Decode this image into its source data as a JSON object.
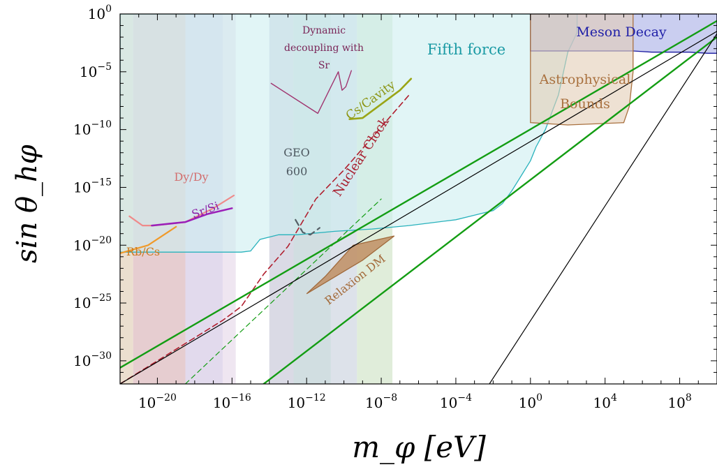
{
  "chart_data": {
    "type": "area",
    "xlabel": "m_φ [eV]",
    "ylabel": "sin θ_hφ",
    "x_scale": "log10",
    "y_scale": "log10",
    "xlim_log10": [
      -22,
      10
    ],
    "ylim_log10": [
      -32,
      0
    ],
    "x_ticks": [
      {
        "exp": -20,
        "label": "10",
        "sup": "−20"
      },
      {
        "exp": -16,
        "label": "10",
        "sup": "−16"
      },
      {
        "exp": -12,
        "label": "10",
        "sup": "−12"
      },
      {
        "exp": -8,
        "label": "10",
        "sup": "−8"
      },
      {
        "exp": -4,
        "label": "10",
        "sup": "−4"
      },
      {
        "exp": 0,
        "label": "10",
        "sup": "0"
      },
      {
        "exp": 4,
        "label": "10",
        "sup": "4"
      },
      {
        "exp": 8,
        "label": "10",
        "sup": "8"
      }
    ],
    "y_ticks": [
      {
        "exp": 0,
        "label": "10",
        "sup": "0"
      },
      {
        "exp": -5,
        "label": "10",
        "sup": "−5"
      },
      {
        "exp": -10,
        "label": "10",
        "sup": "−10"
      },
      {
        "exp": -15,
        "label": "10",
        "sup": "−15"
      },
      {
        "exp": -20,
        "label": "10",
        "sup": "−20"
      },
      {
        "exp": -25,
        "label": "10",
        "sup": "−25"
      },
      {
        "exp": -30,
        "label": "10",
        "sup": "−30"
      }
    ],
    "bands": [
      {
        "x_log10": [
          -22,
          -21.3
        ],
        "color": "#e8d9c7"
      },
      {
        "x_log10": [
          -21.3,
          -18.5
        ],
        "color": "#e2c4c8"
      },
      {
        "x_log10": [
          -18.5,
          -16.5
        ],
        "color": "#ddd3ea"
      },
      {
        "x_log10": [
          -16.5,
          -15.8
        ],
        "color": "#ece2ee"
      },
      {
        "x_log10": [
          -14,
          -12.7
        ],
        "color": "#d3d3e0"
      },
      {
        "x_log10": [
          -12.7,
          -10.7
        ],
        "color": "#c9d8dc"
      },
      {
        "x_log10": [
          -10.7,
          -9.3
        ],
        "color": "#d7dde6"
      },
      {
        "x_log10": [
          -9.3,
          -7.4
        ],
        "color": "#dbead4"
      }
    ],
    "regions": [
      {
        "name": "Fifth force",
        "label": "Fifth force",
        "fill": "#cdeef0",
        "edge": "#29b2bc",
        "points": [
          [
            -22,
            -20.6
          ],
          [
            -15.5,
            -20.6
          ],
          [
            -15,
            -20.5
          ],
          [
            -14.5,
            -19.5
          ],
          [
            -13.5,
            -19.1
          ],
          [
            -12.5,
            -19.1
          ],
          [
            -10.5,
            -18.8
          ],
          [
            -8.5,
            -18.6
          ],
          [
            -6.5,
            -18.3
          ],
          [
            -5,
            -18
          ],
          [
            -4,
            -17.8
          ],
          [
            -3,
            -17.4
          ],
          [
            -2,
            -17
          ],
          [
            -1.5,
            -16.4
          ],
          [
            -1,
            -15.3
          ],
          [
            -0.5,
            -14
          ],
          [
            0,
            -12.7
          ],
          [
            0.3,
            -11.5
          ],
          [
            0.8,
            -10
          ],
          [
            1.5,
            -7
          ],
          [
            2,
            -3.3
          ],
          [
            2.5,
            -1.6
          ],
          [
            2.5,
            0
          ],
          [
            -22,
            0
          ]
        ]
      },
      {
        "name": "Meson Decay",
        "label": "Meson Decay",
        "fill": "#a6aee6",
        "edge": "#1a1aa0",
        "points": [
          [
            0,
            0
          ],
          [
            10,
            0
          ],
          [
            10,
            -3.4
          ],
          [
            9.5,
            -3.4
          ],
          [
            8.5,
            -3.3
          ],
          [
            6.5,
            -3.3
          ],
          [
            5.5,
            -3.2
          ],
          [
            0,
            -3.2
          ]
        ]
      },
      {
        "name": "Astrophysical Bounds",
        "label_lines": [
          "Astrophysical",
          "Bounds"
        ],
        "fill": "#e3cdb6",
        "edge": "#a9713f",
        "points": [
          [
            0,
            0
          ],
          [
            5.5,
            0
          ],
          [
            5.5,
            -5
          ],
          [
            5.3,
            -8
          ],
          [
            5,
            -9.4
          ],
          [
            2,
            -9.6
          ],
          [
            0,
            -9.4
          ]
        ]
      },
      {
        "name": "Relaxion DM",
        "label": "Relaxion DM",
        "fill": "#bf8e63",
        "edge": "#a06a3c",
        "points": [
          [
            -12,
            -24.2
          ],
          [
            -9,
            -21.3
          ],
          [
            -7.3,
            -19.2
          ],
          [
            -9.5,
            -20
          ],
          [
            -11,
            -22.7
          ]
        ]
      }
    ],
    "series": [
      {
        "name": "Dy/Dy",
        "label": "Dy/Dy",
        "color": "#ef8a8a",
        "width": 2.2,
        "dash": "",
        "points": [
          [
            -21.5,
            -17.5
          ],
          [
            -20.8,
            -18.3
          ],
          [
            -20.2,
            -18.3
          ],
          [
            -18.5,
            -18
          ],
          [
            -17,
            -16.8
          ],
          [
            -15.9,
            -15.7
          ]
        ]
      },
      {
        "name": "Sr/Si",
        "label": "Sr/Si",
        "color": "#9b1fb8",
        "width": 2.5,
        "dash": "",
        "points": [
          [
            -20.3,
            -18.3
          ],
          [
            -18.5,
            -18
          ],
          [
            -17.3,
            -17.3
          ],
          [
            -16,
            -16.8
          ]
        ]
      },
      {
        "name": "Rb/Cs",
        "label": "Rb/Cs",
        "color": "#f09a2a",
        "width": 2.2,
        "dash": "",
        "points": [
          [
            -22,
            -20.7
          ],
          [
            -20.5,
            -20
          ],
          [
            -19,
            -18.4
          ]
        ]
      },
      {
        "name": "Nuclear Clock",
        "label": "Nuclear Clock",
        "color": "#b01e2e",
        "width": 1.6,
        "dash": "8,5",
        "points": [
          [
            -22,
            -32
          ],
          [
            -19,
            -29
          ],
          [
            -16.5,
            -26.5
          ],
          [
            -15.5,
            -25.3
          ],
          [
            -14.3,
            -22.5
          ],
          [
            -13,
            -20.1
          ],
          [
            -11.5,
            -16
          ],
          [
            -10,
            -13.5
          ],
          [
            -6.5,
            -7
          ]
        ]
      },
      {
        "name": "Cs/Cavity",
        "label": "Cs/Cavity",
        "color": "#9aa516",
        "width": 2.6,
        "dash": "",
        "points": [
          [
            -9.7,
            -9.1
          ],
          [
            -9,
            -9
          ],
          [
            -8,
            -7.8
          ],
          [
            -7,
            -6.6
          ],
          [
            -6.4,
            -5.6
          ]
        ]
      },
      {
        "name": "GEO 600",
        "label_lines": [
          "GEO",
          "600"
        ],
        "color": "#555f66",
        "width": 2.2,
        "dash": "9,6",
        "points": [
          [
            -12.6,
            -17.8
          ],
          [
            -12.2,
            -18.9
          ],
          [
            -11.8,
            -19.1
          ],
          [
            -11.3,
            -18.5
          ]
        ]
      },
      {
        "name": "Dynamic decoupling with Sr",
        "label_lines": [
          "Dynamic",
          "decoupling with",
          "Sr"
        ],
        "color": "#a0346f",
        "width": 1.4,
        "dash": "",
        "points": [
          [
            -13.9,
            -6
          ],
          [
            -11.4,
            -8.6
          ],
          [
            -10.3,
            -5
          ],
          [
            -10.1,
            -6.6
          ],
          [
            -9.9,
            -6.3
          ],
          [
            -9.6,
            -4.9
          ]
        ]
      },
      {
        "name": "green-1",
        "color": "#139d13",
        "width": 2.4,
        "dash": "",
        "points": [
          [
            -22,
            -30.6
          ],
          [
            10,
            -0.6
          ]
        ]
      },
      {
        "name": "green-2",
        "color": "#139d13",
        "width": 2.4,
        "dash": "",
        "points": [
          [
            -14.3,
            -32
          ],
          [
            10,
            -2
          ]
        ]
      },
      {
        "name": "green-dashed",
        "color": "#139d13",
        "width": 1.2,
        "dash": "7,5",
        "points": [
          [
            -18.5,
            -32
          ],
          [
            -8,
            -16
          ]
        ]
      },
      {
        "name": "black-1",
        "color": "#000000",
        "width": 1.2,
        "dash": "",
        "points": [
          [
            -22,
            -32
          ],
          [
            10,
            -1.5
          ]
        ]
      },
      {
        "name": "black-2",
        "color": "#000000",
        "width": 1.2,
        "dash": "",
        "points": [
          [
            -2.2,
            -32
          ],
          [
            10,
            -1.7
          ]
        ]
      }
    ]
  }
}
